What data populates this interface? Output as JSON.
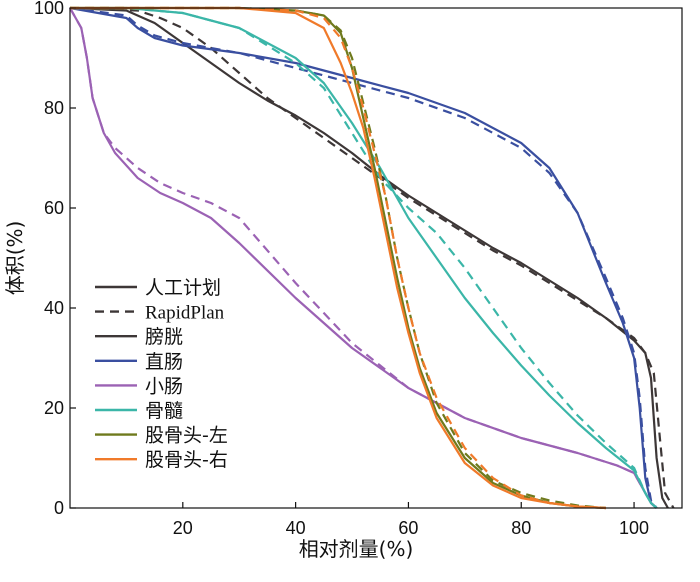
{
  "chart_data": {
    "type": "line",
    "xlabel": "相对剂量(%)",
    "ylabel": "体积(%)",
    "xlim": [
      0,
      108.5
    ],
    "ylim": [
      0,
      100
    ],
    "xticks": [
      20,
      40,
      60,
      80,
      100
    ],
    "yticks": [
      0,
      20,
      40,
      60,
      80,
      100
    ],
    "grid": false,
    "legend_position": "bottom-left",
    "style_legend": [
      {
        "label": "人工计划",
        "dash": "solid"
      },
      {
        "label": "RapidPlan",
        "dash": "dashed"
      }
    ],
    "series": [
      {
        "name": "膀胱",
        "color": "#3d3737",
        "manual": [
          [
            0,
            100
          ],
          [
            10,
            99.5
          ],
          [
            15,
            97
          ],
          [
            20,
            93
          ],
          [
            25,
            89
          ],
          [
            30,
            85
          ],
          [
            35,
            81.5
          ],
          [
            40,
            78.5
          ],
          [
            45,
            75
          ],
          [
            50,
            71
          ],
          [
            55,
            66.5
          ],
          [
            60,
            62.5
          ],
          [
            65,
            59
          ],
          [
            70,
            55.5
          ],
          [
            75,
            52
          ],
          [
            80,
            49
          ],
          [
            85,
            45.5
          ],
          [
            90,
            42
          ],
          [
            95,
            38
          ],
          [
            100,
            33.5
          ],
          [
            102,
            31
          ],
          [
            103,
            26
          ],
          [
            104,
            10
          ],
          [
            105,
            2
          ],
          [
            106,
            0
          ]
        ],
        "rapidplan": [
          [
            0,
            100
          ],
          [
            12,
            99.5
          ],
          [
            16,
            98
          ],
          [
            20,
            96
          ],
          [
            25,
            92
          ],
          [
            30,
            87
          ],
          [
            35,
            82
          ],
          [
            40,
            78
          ],
          [
            45,
            74
          ],
          [
            50,
            70
          ],
          [
            55,
            66
          ],
          [
            60,
            62
          ],
          [
            65,
            58.5
          ],
          [
            70,
            55
          ],
          [
            75,
            51.5
          ],
          [
            80,
            48.5
          ],
          [
            85,
            45
          ],
          [
            90,
            41.5
          ],
          [
            95,
            38
          ],
          [
            100,
            34
          ],
          [
            102,
            31
          ],
          [
            103.5,
            27
          ],
          [
            104.5,
            15
          ],
          [
            105.5,
            3
          ],
          [
            107,
            0
          ]
        ]
      },
      {
        "name": "直肠",
        "color": "#3a4fa0",
        "manual": [
          [
            0,
            100
          ],
          [
            10,
            98
          ],
          [
            12,
            96
          ],
          [
            15,
            94
          ],
          [
            20,
            92.5
          ],
          [
            30,
            91
          ],
          [
            40,
            89
          ],
          [
            50,
            86
          ],
          [
            60,
            83
          ],
          [
            70,
            79
          ],
          [
            80,
            73
          ],
          [
            85,
            68
          ],
          [
            90,
            59
          ],
          [
            95,
            45
          ],
          [
            98,
            37
          ],
          [
            100,
            30
          ],
          [
            101,
            20
          ],
          [
            102,
            6
          ],
          [
            103,
            1
          ],
          [
            104,
            0
          ]
        ],
        "rapidplan": [
          [
            0,
            100
          ],
          [
            10,
            98.5
          ],
          [
            12,
            96.5
          ],
          [
            15,
            94.5
          ],
          [
            20,
            93
          ],
          [
            30,
            91
          ],
          [
            40,
            88
          ],
          [
            50,
            85
          ],
          [
            60,
            82
          ],
          [
            70,
            78
          ],
          [
            80,
            72
          ],
          [
            85,
            67
          ],
          [
            90,
            59
          ],
          [
            95,
            46
          ],
          [
            98,
            38
          ],
          [
            100,
            31
          ],
          [
            101,
            22
          ],
          [
            102,
            8
          ],
          [
            103,
            1.5
          ],
          [
            104,
            0
          ]
        ]
      },
      {
        "name": "小肠",
        "color": "#9b62b4",
        "manual": [
          [
            0,
            100
          ],
          [
            2,
            96
          ],
          [
            3,
            90
          ],
          [
            4,
            82
          ],
          [
            6,
            75
          ],
          [
            8,
            71
          ],
          [
            12,
            66
          ],
          [
            16,
            63
          ],
          [
            20,
            61
          ],
          [
            25,
            58
          ],
          [
            30,
            53
          ],
          [
            40,
            42
          ],
          [
            50,
            32
          ],
          [
            60,
            24
          ],
          [
            70,
            18
          ],
          [
            80,
            14
          ],
          [
            90,
            11
          ],
          [
            97,
            8.5
          ],
          [
            100,
            7
          ],
          [
            102,
            3
          ],
          [
            103,
            1
          ],
          [
            104,
            0
          ]
        ],
        "rapidplan": [
          [
            0,
            100
          ],
          [
            2,
            96
          ],
          [
            3,
            90
          ],
          [
            4,
            82
          ],
          [
            6,
            75
          ],
          [
            8,
            72
          ],
          [
            12,
            68
          ],
          [
            16,
            65
          ],
          [
            20,
            63
          ],
          [
            25,
            61
          ],
          [
            30,
            58
          ],
          [
            40,
            45
          ],
          [
            50,
            33
          ],
          [
            60,
            24
          ],
          [
            70,
            18
          ],
          [
            80,
            14
          ],
          [
            90,
            11
          ],
          [
            97,
            8.5
          ],
          [
            100,
            7
          ],
          [
            102,
            3
          ],
          [
            103,
            1
          ],
          [
            104,
            0
          ]
        ]
      },
      {
        "name": "骨髓",
        "color": "#3bb6a8",
        "manual": [
          [
            0,
            100
          ],
          [
            10,
            100
          ],
          [
            20,
            99
          ],
          [
            30,
            96
          ],
          [
            40,
            90
          ],
          [
            45,
            85
          ],
          [
            50,
            77
          ],
          [
            55,
            68
          ],
          [
            60,
            58
          ],
          [
            65,
            50
          ],
          [
            70,
            42
          ],
          [
            75,
            35
          ],
          [
            80,
            28.5
          ],
          [
            85,
            22.5
          ],
          [
            90,
            17
          ],
          [
            95,
            12
          ],
          [
            100,
            7.5
          ],
          [
            102,
            3
          ],
          [
            103,
            1
          ],
          [
            104,
            0
          ]
        ],
        "rapidplan": [
          [
            0,
            100
          ],
          [
            10,
            100
          ],
          [
            20,
            99
          ],
          [
            30,
            96
          ],
          [
            40,
            89
          ],
          [
            45,
            84
          ],
          [
            50,
            75
          ],
          [
            55,
            66
          ],
          [
            60,
            60
          ],
          [
            65,
            55
          ],
          [
            70,
            48
          ],
          [
            75,
            40
          ],
          [
            80,
            32
          ],
          [
            85,
            25
          ],
          [
            90,
            18.5
          ],
          [
            95,
            13
          ],
          [
            100,
            8
          ],
          [
            102,
            3
          ],
          [
            103,
            1
          ],
          [
            104,
            0
          ]
        ]
      },
      {
        "name": "股骨头-左",
        "color": "#6f7a1d",
        "manual": [
          [
            0,
            100
          ],
          [
            30,
            100
          ],
          [
            40,
            99.5
          ],
          [
            45,
            98.5
          ],
          [
            48,
            95
          ],
          [
            50,
            88
          ],
          [
            52,
            78
          ],
          [
            54,
            68
          ],
          [
            56,
            57
          ],
          [
            58,
            46
          ],
          [
            60,
            36
          ],
          [
            62,
            28
          ],
          [
            65,
            19
          ],
          [
            70,
            10
          ],
          [
            75,
            5
          ],
          [
            80,
            2.5
          ],
          [
            85,
            1
          ],
          [
            90,
            0.3
          ],
          [
            95,
            0
          ]
        ],
        "rapidplan": [
          [
            0,
            100
          ],
          [
            30,
            100
          ],
          [
            40,
            99.5
          ],
          [
            45,
            98.5
          ],
          [
            48,
            95.5
          ],
          [
            50,
            90
          ],
          [
            52,
            81
          ],
          [
            54,
            72
          ],
          [
            56,
            62
          ],
          [
            58,
            50
          ],
          [
            60,
            40
          ],
          [
            62,
            31
          ],
          [
            65,
            21
          ],
          [
            70,
            11
          ],
          [
            75,
            5.5
          ],
          [
            80,
            3
          ],
          [
            85,
            1.5
          ],
          [
            90,
            0.5
          ],
          [
            95,
            0
          ]
        ]
      },
      {
        "name": "股骨头-右",
        "color": "#f07a2a",
        "manual": [
          [
            0,
            100
          ],
          [
            30,
            100
          ],
          [
            40,
            99
          ],
          [
            45,
            96
          ],
          [
            48,
            89
          ],
          [
            50,
            83
          ],
          [
            52,
            76
          ],
          [
            54,
            66
          ],
          [
            56,
            55
          ],
          [
            58,
            44
          ],
          [
            60,
            35
          ],
          [
            62,
            27
          ],
          [
            65,
            18
          ],
          [
            70,
            9
          ],
          [
            75,
            4.5
          ],
          [
            80,
            2
          ],
          [
            85,
            1
          ],
          [
            90,
            0.3
          ],
          [
            95,
            0
          ]
        ],
        "rapidplan": [
          [
            0,
            100
          ],
          [
            30,
            100
          ],
          [
            40,
            99.5
          ],
          [
            45,
            98
          ],
          [
            48,
            94
          ],
          [
            50,
            88
          ],
          [
            52,
            80
          ],
          [
            54,
            71
          ],
          [
            56,
            62
          ],
          [
            58,
            50
          ],
          [
            60,
            40
          ],
          [
            62,
            31
          ],
          [
            65,
            22
          ],
          [
            70,
            12
          ],
          [
            75,
            6
          ],
          [
            80,
            2.5
          ],
          [
            85,
            1
          ],
          [
            90,
            0.3
          ],
          [
            95,
            0
          ]
        ]
      }
    ]
  }
}
